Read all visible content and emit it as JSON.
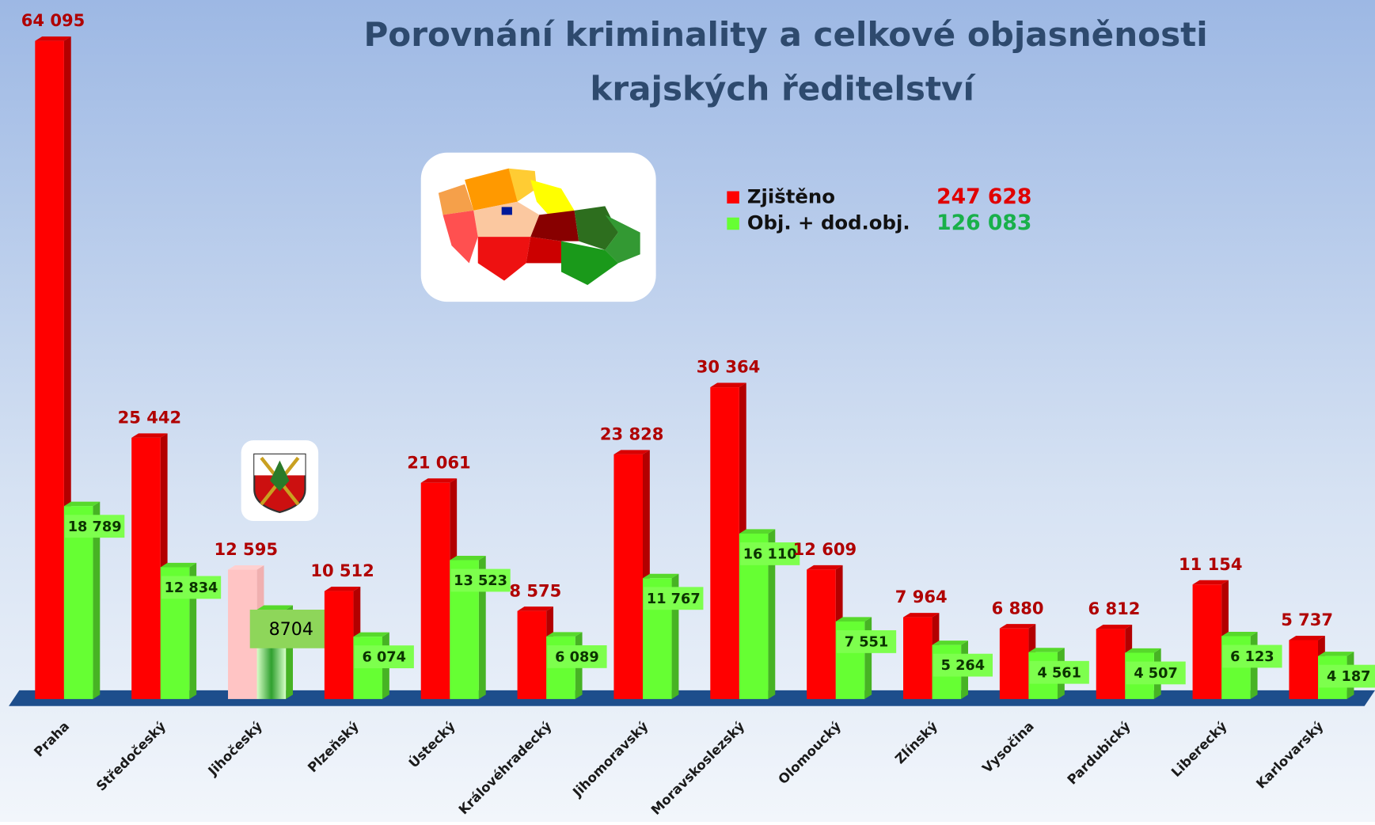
{
  "chart_data": {
    "type": "bar",
    "title": [
      "Porovnání kriminality a celkové objasněnosti",
      "krajských ředitelství"
    ],
    "categories": [
      "Praha",
      "Středočeský",
      "Jihočeský",
      "Plzeňský",
      "Ústecký",
      "Královéhradecký",
      "Jihomoravský",
      "Moravskoslezský",
      "Olomoucký",
      "Zlínský",
      "Vysočina",
      "Pardubický",
      "Liberecký",
      "Karlovarský"
    ],
    "series": [
      {
        "name": "Zjištěno",
        "color": "#ff0000",
        "total_label": "247 628",
        "values": [
          64095,
          25442,
          12595,
          10512,
          21061,
          8575,
          23828,
          30364,
          12609,
          7964,
          6880,
          6812,
          11154,
          5737
        ],
        "value_labels": [
          "64 095",
          "25 442",
          "12 595",
          "10 512",
          "21 061",
          "8 575",
          "23 828",
          "30 364",
          "12 609",
          "7 964",
          "6 880",
          "6 812",
          "11 154",
          "5 737"
        ]
      },
      {
        "name": "Obj. + dod.obj.",
        "color": "#66ff33",
        "total_label": "126 083",
        "values": [
          18789,
          12834,
          8704,
          6074,
          13523,
          6089,
          11767,
          16110,
          7551,
          5264,
          4561,
          4507,
          6123,
          4187
        ],
        "value_labels": [
          "18 789",
          "12 834",
          "8704",
          "6 074",
          "13 523",
          "6 089",
          "11 767",
          "16 110",
          "7 551",
          "5 264",
          "4 561",
          "4 507",
          "6 123",
          "4 187"
        ]
      }
    ],
    "highlight": 2,
    "ylim": [
      0,
      65000
    ]
  }
}
